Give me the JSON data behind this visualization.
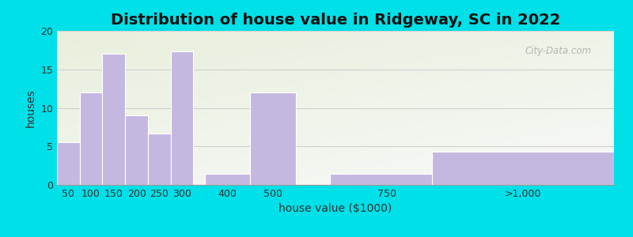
{
  "title": "Distribution of house value in Ridgeway, SC in 2022",
  "xlabel": "house value ($1000)",
  "ylabel": "houses",
  "bar_labels": [
    "50",
    "100",
    "150",
    "200",
    "250",
    "300",
    "400",
    "500",
    "750",
    ">1,000"
  ],
  "bar_values": [
    5.5,
    12,
    17,
    9,
    6.7,
    17.3,
    1.4,
    12,
    1.4,
    4.3
  ],
  "bar_color": "#c5b8e0",
  "ylim": [
    0,
    20
  ],
  "yticks": [
    0,
    5,
    10,
    15,
    20
  ],
  "background_outer": "#00e0e8",
  "grad_top_color": "#e8f0dc",
  "grad_bottom_color": "#f5f5f0",
  "grid_color": "#d0d0d0",
  "title_fontsize": 14,
  "axis_label_fontsize": 10,
  "tick_fontsize": 9,
  "watermark_text": "City-Data.com",
  "x_positions": [
    50,
    100,
    150,
    200,
    250,
    300,
    400,
    500,
    750,
    1050
  ],
  "bar_widths": [
    50,
    50,
    50,
    50,
    50,
    50,
    100,
    100,
    250,
    400
  ],
  "xlim_left": 25,
  "xlim_right": 1250
}
